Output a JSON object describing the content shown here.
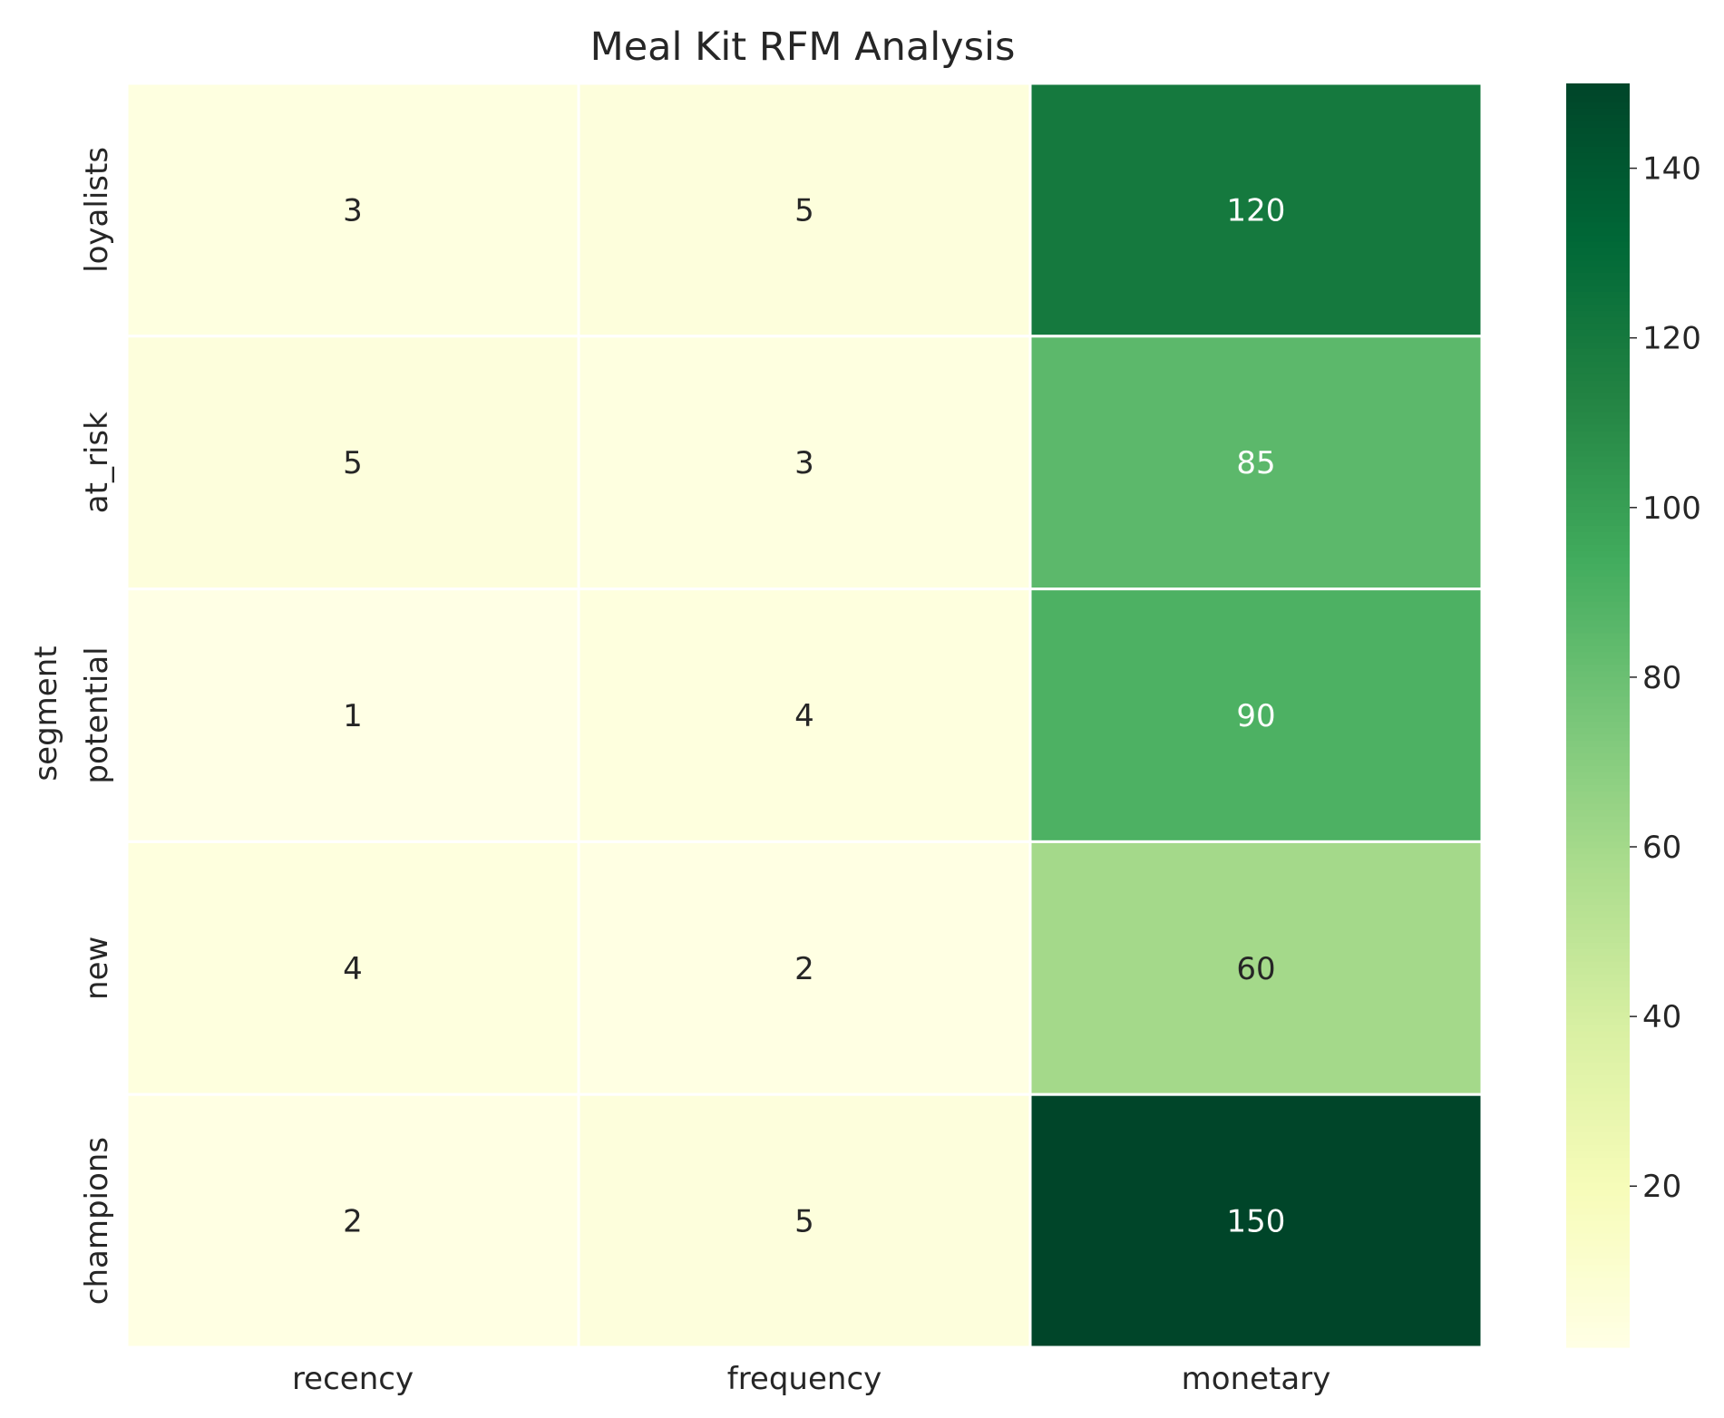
{
  "chart_data": {
    "type": "heatmap",
    "title": "Meal Kit RFM Analysis",
    "xlabel": "",
    "ylabel": "segment",
    "x_categories": [
      "recency",
      "frequency",
      "monetary"
    ],
    "y_categories": [
      "loyalists",
      "at_risk",
      "potential",
      "new",
      "champions"
    ],
    "values": [
      [
        3,
        5,
        120
      ],
      [
        5,
        3,
        85
      ],
      [
        1,
        4,
        90
      ],
      [
        4,
        2,
        60
      ],
      [
        2,
        5,
        150
      ]
    ],
    "colormap": "YlGn",
    "vmin": 1,
    "vmax": 150,
    "colorbar_ticks": [
      20,
      40,
      60,
      80,
      100,
      120,
      140
    ],
    "annotations_shown": true,
    "grid": false,
    "cell_border_color": "#ffffff"
  }
}
